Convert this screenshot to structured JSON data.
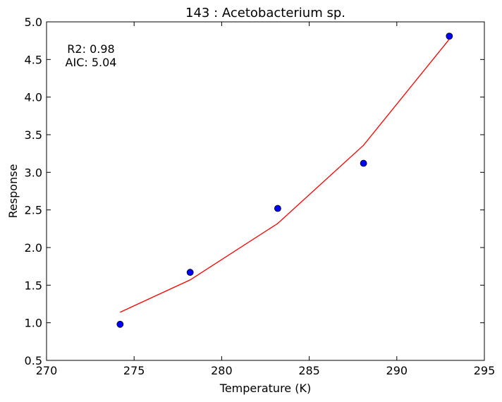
{
  "chart_data": {
    "type": "scatter",
    "title": "143 : Acetobacterium sp.",
    "xlabel": "Temperature (K)",
    "ylabel": "Response",
    "xlim": [
      270,
      295
    ],
    "ylim": [
      0.5,
      5.0
    ],
    "xticks": [
      270,
      275,
      280,
      285,
      290,
      295
    ],
    "yticks": [
      0.5,
      1.0,
      1.5,
      2.0,
      2.5,
      3.0,
      3.5,
      4.0,
      4.5,
      5.0
    ],
    "xtick_labels": [
      "270",
      "275",
      "280",
      "285",
      "290",
      "295"
    ],
    "ytick_labels": [
      "0.5",
      "1.0",
      "1.5",
      "2.0",
      "2.5",
      "3.0",
      "3.5",
      "4.0",
      "4.5",
      "5.0"
    ],
    "grid": false,
    "annotations": [
      "R2: 0.98",
      "AIC: 5.04"
    ],
    "series": [
      {
        "kind": "points",
        "color": "#0000ff",
        "x": [
          274.2,
          278.2,
          283.2,
          288.1,
          293.0
        ],
        "y": [
          0.98,
          1.67,
          2.52,
          3.12,
          4.81
        ]
      },
      {
        "kind": "fit-line",
        "color": "#ff0000",
        "x": [
          274.2,
          278.2,
          283.2,
          288.1,
          293.0
        ],
        "y": [
          1.14,
          1.57,
          2.32,
          3.36,
          4.77
        ]
      }
    ]
  }
}
